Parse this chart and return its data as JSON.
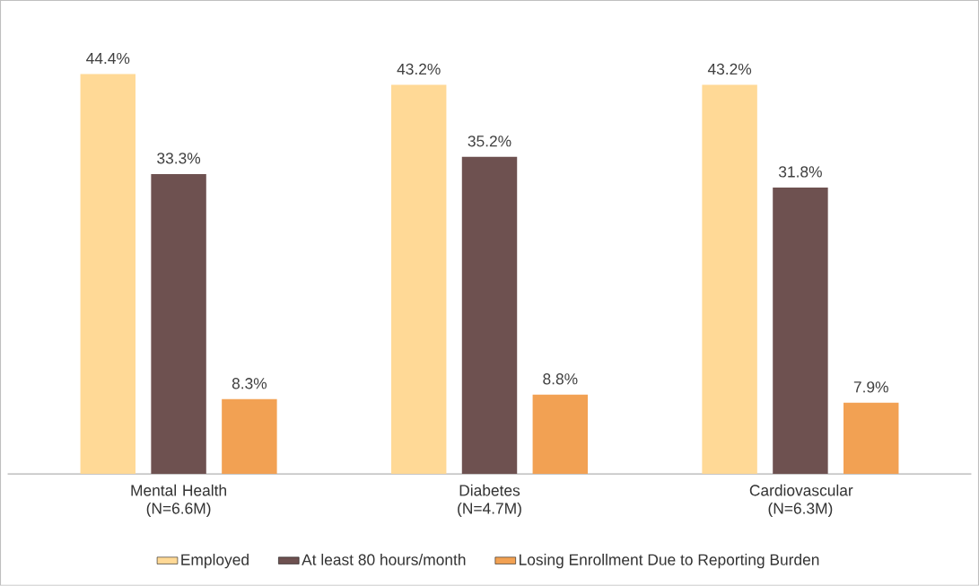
{
  "chart_data": {
    "type": "bar",
    "categories": [
      "Mental Health (N=6.6M)",
      "Diabetes (N=4.7M)",
      "Cardiovascular (N=6.3M)"
    ],
    "series": [
      {
        "name": "Employed",
        "color": "#ffd996",
        "values": [
          44.4,
          43.2,
          43.2
        ],
        "value_labels": [
          "44.4%",
          "43.2%",
          "43.2%"
        ]
      },
      {
        "name": "At least 80 hours/month",
        "color": "#6e5150",
        "values": [
          33.3,
          35.2,
          31.8
        ],
        "value_labels": [
          "33.3%",
          "35.2%",
          "31.8%"
        ]
      },
      {
        "name": "Losing Enrollment Due to Reporting Burden",
        "color": "#f2a153",
        "values": [
          8.3,
          8.8,
          7.9
        ],
        "value_labels": [
          "8.3%",
          "8.8%",
          "7.9%"
        ]
      }
    ],
    "legend": "bottom"
  }
}
